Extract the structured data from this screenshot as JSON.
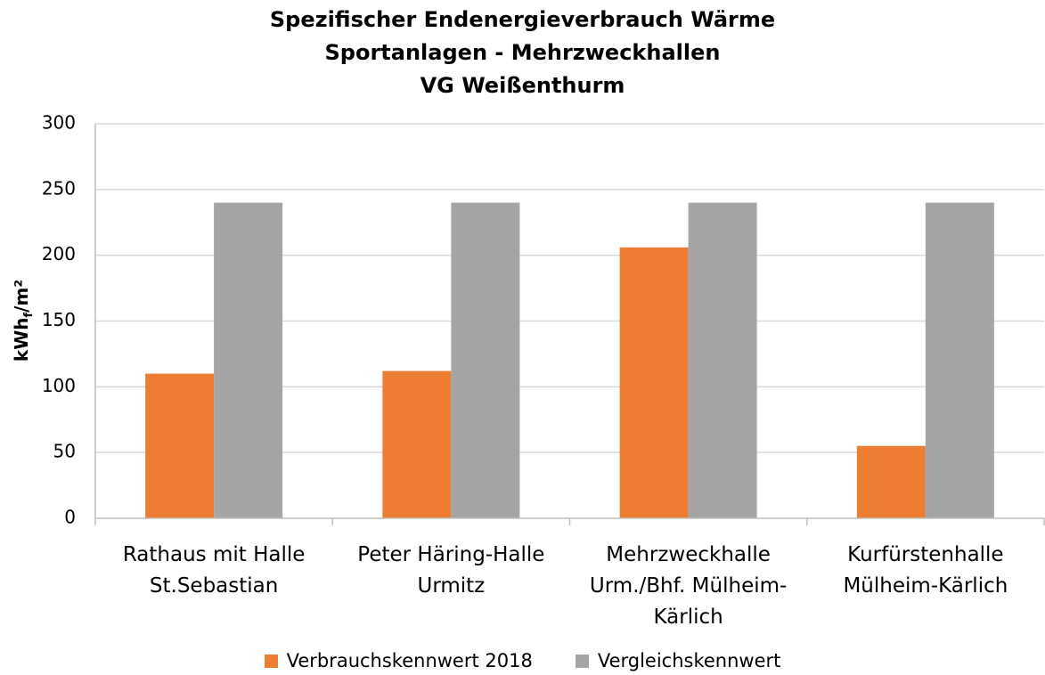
{
  "chart_data": {
    "type": "bar",
    "title": "Spezifischer Endenergieverbrauch Wärme\nSportanlagen - Mehrzweckhallen\nVG Weißenthurm",
    "ylabel": [
      "kWh",
      "f",
      "/m²"
    ],
    "categories": [
      "Rathaus mit Halle\nSt.Sebastian",
      "Peter Häring-Halle\nUrmitz",
      "Mehrzweckhalle\nUrm./Bhf. Mülheim-\nKärlich",
      "Kurfürstenhalle\nMülheim-Kärlich"
    ],
    "series": [
      {
        "name": "Verbrauchskennwert 2018",
        "color": "#ed7d31",
        "values": [
          110,
          112,
          206,
          55
        ]
      },
      {
        "name": "Vergleichskennwert",
        "color": "#a5a5a5",
        "values": [
          240,
          240,
          240,
          240
        ]
      }
    ],
    "ylim": [
      0,
      300
    ],
    "yticks": [
      0,
      50,
      100,
      150,
      200,
      250,
      300
    ],
    "grid": true,
    "legend": "bottom"
  }
}
